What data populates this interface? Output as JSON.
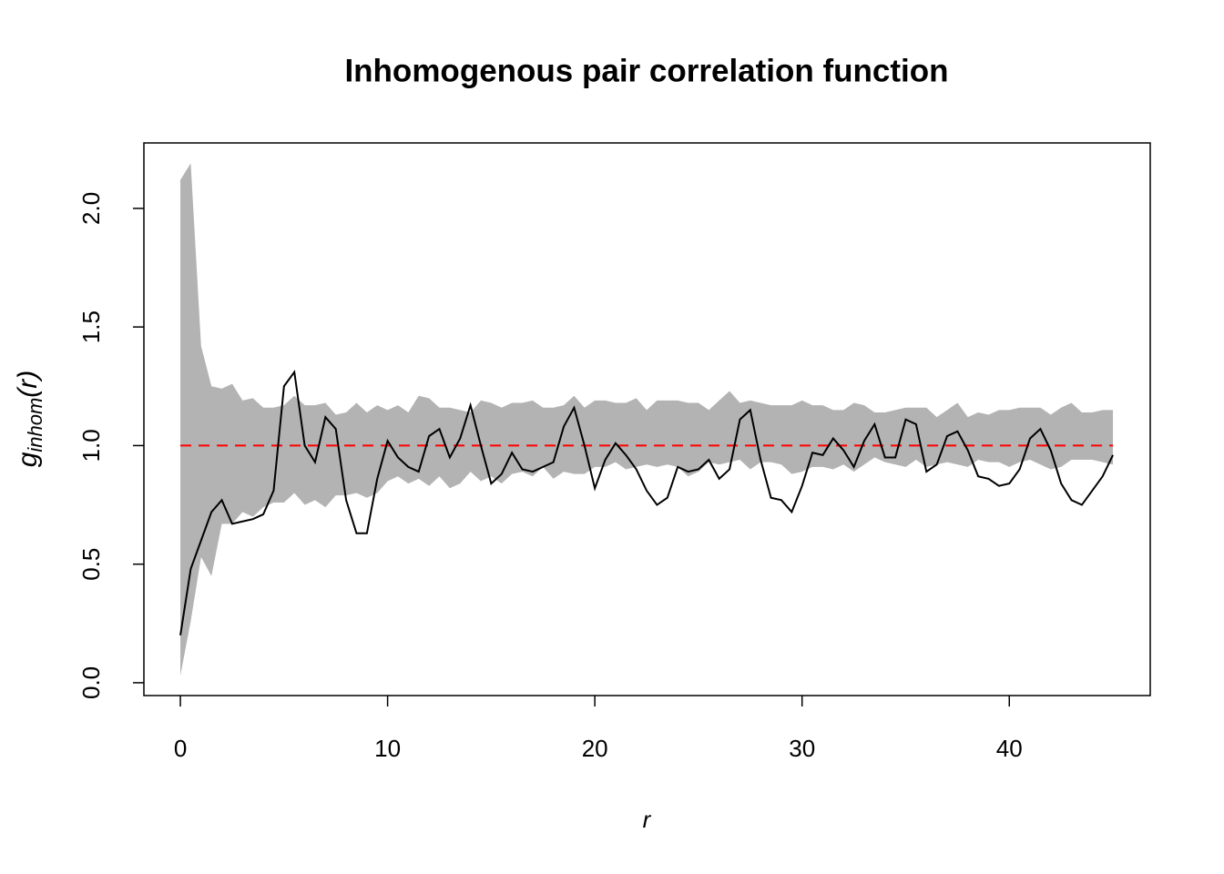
{
  "chart_data": {
    "type": "line",
    "title": "Inhomogenous pair correlation function",
    "xlabel": "r",
    "ylabel": {
      "main": "g",
      "sub": "inhom",
      "arg": "(r)"
    },
    "x": [
      0,
      0.5,
      1,
      1.5,
      2,
      2.5,
      3,
      3.5,
      4,
      4.5,
      5,
      5.5,
      6,
      6.5,
      7,
      7.5,
      8,
      8.5,
      9,
      9.5,
      10,
      10.5,
      11,
      11.5,
      12,
      12.5,
      13,
      13.5,
      14,
      14.5,
      15,
      15.5,
      16,
      16.5,
      17,
      17.5,
      18,
      18.5,
      19,
      19.5,
      20,
      20.5,
      21,
      21.5,
      22,
      22.5,
      23,
      23.5,
      24,
      24.5,
      25,
      25.5,
      26,
      26.5,
      27,
      27.5,
      28,
      28.5,
      29,
      29.5,
      30,
      30.5,
      31,
      31.5,
      32,
      32.5,
      33,
      33.5,
      34,
      34.5,
      35,
      35.5,
      36,
      36.5,
      37,
      37.5,
      38,
      38.5,
      39,
      39.5,
      40,
      40.5,
      41,
      41.5,
      42,
      42.5,
      43,
      43.5,
      44,
      44.5,
      45
    ],
    "envelope": {
      "color": "#b3b3b3",
      "upper": [
        2.12,
        2.19,
        1.42,
        1.25,
        1.24,
        1.26,
        1.19,
        1.2,
        1.16,
        1.16,
        1.17,
        1.21,
        1.17,
        1.17,
        1.18,
        1.13,
        1.14,
        1.18,
        1.14,
        1.17,
        1.15,
        1.17,
        1.14,
        1.21,
        1.2,
        1.16,
        1.16,
        1.15,
        1.14,
        1.19,
        1.18,
        1.16,
        1.18,
        1.18,
        1.19,
        1.16,
        1.16,
        1.17,
        1.21,
        1.16,
        1.19,
        1.19,
        1.18,
        1.18,
        1.2,
        1.15,
        1.19,
        1.19,
        1.19,
        1.18,
        1.18,
        1.15,
        1.19,
        1.23,
        1.18,
        1.19,
        1.18,
        1.17,
        1.17,
        1.17,
        1.19,
        1.17,
        1.17,
        1.15,
        1.15,
        1.18,
        1.17,
        1.14,
        1.14,
        1.15,
        1.16,
        1.16,
        1.16,
        1.12,
        1.15,
        1.18,
        1.12,
        1.14,
        1.13,
        1.15,
        1.15,
        1.16,
        1.16,
        1.16,
        1.13,
        1.16,
        1.18,
        1.14,
        1.14,
        1.15,
        1.15
      ],
      "lower": [
        0.03,
        0.26,
        0.53,
        0.45,
        0.67,
        0.67,
        0.72,
        0.7,
        0.74,
        0.76,
        0.76,
        0.8,
        0.75,
        0.77,
        0.74,
        0.79,
        0.79,
        0.8,
        0.78,
        0.8,
        0.85,
        0.87,
        0.84,
        0.86,
        0.83,
        0.87,
        0.82,
        0.84,
        0.89,
        0.85,
        0.87,
        0.84,
        0.88,
        0.89,
        0.87,
        0.91,
        0.86,
        0.89,
        0.88,
        0.88,
        0.91,
        0.91,
        0.93,
        0.9,
        0.91,
        0.92,
        0.91,
        0.92,
        0.91,
        0.87,
        0.89,
        0.93,
        0.92,
        0.93,
        0.94,
        0.9,
        0.93,
        0.93,
        0.92,
        0.88,
        0.89,
        0.91,
        0.91,
        0.9,
        0.92,
        0.89,
        0.92,
        0.95,
        0.93,
        0.92,
        0.91,
        0.94,
        0.91,
        0.92,
        0.93,
        0.92,
        0.91,
        0.94,
        0.93,
        0.93,
        0.91,
        0.93,
        0.94,
        0.92,
        0.9,
        0.91,
        0.94,
        0.94,
        0.94,
        0.93,
        0.92
      ]
    },
    "series": [
      {
        "color": "#000000",
        "dashed": false,
        "values": [
          0.2,
          0.48,
          0.6,
          0.72,
          0.77,
          0.67,
          0.68,
          0.69,
          0.71,
          0.81,
          1.25,
          1.31,
          1.0,
          0.93,
          1.12,
          1.07,
          0.77,
          0.63,
          0.63,
          0.86,
          1.02,
          0.95,
          0.91,
          0.89,
          1.04,
          1.07,
          0.95,
          1.03,
          1.17,
          1.0,
          0.84,
          0.88,
          0.97,
          0.9,
          0.89,
          0.91,
          0.93,
          1.08,
          1.16,
          1.0,
          0.82,
          0.94,
          1.01,
          0.96,
          0.9,
          0.81,
          0.75,
          0.78,
          0.91,
          0.89,
          0.9,
          0.94,
          0.86,
          0.9,
          1.11,
          1.15,
          0.94,
          0.78,
          0.77,
          0.72,
          0.83,
          0.97,
          0.96,
          1.03,
          0.98,
          0.91,
          1.02,
          1.09,
          0.95,
          0.95,
          1.11,
          1.09,
          0.89,
          0.92,
          1.04,
          1.06,
          0.98,
          0.87,
          0.86,
          0.83,
          0.84,
          0.9,
          1.03,
          1.07,
          0.98,
          0.84,
          0.77,
          0.75,
          0.81,
          0.87,
          0.96
        ]
      },
      {
        "color": "#ff0000",
        "dashed": true,
        "x": [
          0,
          45
        ],
        "values": [
          1,
          1
        ]
      }
    ],
    "xlim": [
      -1.76,
      46.8
    ],
    "ylim": [
      -0.054,
      2.276
    ],
    "xticks": [
      0,
      10,
      20,
      30,
      40
    ],
    "yticks": [
      {
        "value": 0,
        "label": "0.0"
      },
      0.5,
      {
        "value": 1,
        "label": "1.0"
      },
      1.5,
      {
        "value": 2,
        "label": "2.0"
      }
    ]
  }
}
